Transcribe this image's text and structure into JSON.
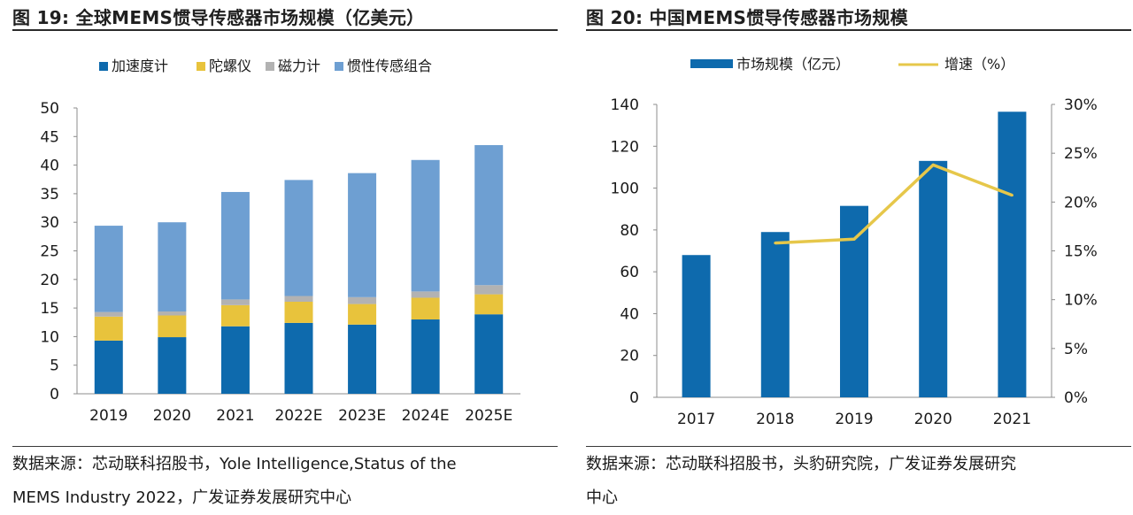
{
  "charts": {
    "left": {
      "figure_title": "图 19: 全球MEMS惯导传感器市场规模（亿美元）",
      "source_line1": "数据来源：芯动联科招股书，Yole Intelligence,Status of the",
      "source_line2": "MEMS Industry 2022，广发证券发展研究中心"
    },
    "right": {
      "figure_title": "图 20: 中国MEMS惯导传感器市场规模",
      "source_line1": "数据来源：芯动联科招股书，头豹研究院，广发证券发展研究",
      "source_line2": "中心"
    }
  },
  "chart_data": [
    {
      "type": "bar",
      "stacked": true,
      "title": "全球MEMS惯导传感器市场规模（亿美元）",
      "categories": [
        "2019",
        "2020",
        "2021",
        "2022E",
        "2023E",
        "2024E",
        "2025E"
      ],
      "series": [
        {
          "name": "加速度计",
          "color": "#0e6aad",
          "values": [
            9.3,
            9.9,
            11.8,
            12.4,
            12.1,
            13.0,
            13.9
          ]
        },
        {
          "name": "陀螺仪",
          "color": "#e8c33c",
          "values": [
            4.2,
            3.8,
            3.7,
            3.7,
            3.6,
            3.8,
            3.5
          ]
        },
        {
          "name": "磁力计",
          "color": "#b2b2b2",
          "values": [
            0.8,
            0.7,
            1.0,
            1.0,
            1.2,
            1.1,
            1.6
          ]
        },
        {
          "name": "惯性传感组合",
          "color": "#6e9fd2",
          "values": [
            15.1,
            15.6,
            18.8,
            20.3,
            21.7,
            23.0,
            24.5
          ]
        }
      ],
      "ylim": [
        0,
        50
      ],
      "yticks": [
        0,
        5,
        10,
        15,
        20,
        25,
        30,
        35,
        40,
        45,
        50
      ],
      "legend": "top"
    },
    {
      "type": "bar+line",
      "title": "中国MEMS惯导传感器市场规模",
      "categories": [
        "2017",
        "2018",
        "2019",
        "2020",
        "2021"
      ],
      "series": [
        {
          "name": "市场规模（亿元）",
          "type": "bar",
          "axis": "left",
          "color": "#0e6aad",
          "values": [
            68,
            79,
            91.5,
            113,
            136.5
          ]
        },
        {
          "name": "增速（%）",
          "type": "line",
          "axis": "right",
          "color": "#e6c74a",
          "values": [
            null,
            15.8,
            16.2,
            23.8,
            20.7
          ]
        }
      ],
      "ylim": [
        0,
        140
      ],
      "yticks": [
        0,
        20,
        40,
        60,
        80,
        100,
        120,
        140
      ],
      "y2lim": [
        0,
        30
      ],
      "y2ticks": [
        "0%",
        "5%",
        "10%",
        "15%",
        "20%",
        "25%",
        "30%"
      ],
      "legend": "top"
    }
  ]
}
